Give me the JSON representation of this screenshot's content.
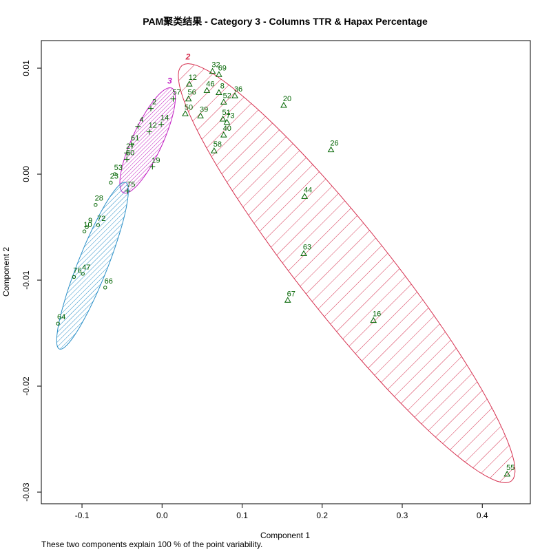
{
  "chart_data": {
    "type": "clusplot",
    "title": "PAM聚类结果 - Category  3  - Columns  TTR  &  Hapax Percentage",
    "x_label": "Component 1",
    "y_label": "Component 2",
    "footnote": "These two components explain 100 % of the point variability.",
    "xlim": [
      -0.1508,
      0.46
    ],
    "ylim": [
      -0.0311,
      0.0126
    ],
    "xticks": [
      -0.1,
      {
        "value": 0,
        "label": "0.0"
      },
      0.1,
      0.2,
      0.3,
      0.4
    ],
    "yticks": [
      -0.03,
      -0.02,
      -0.01,
      {
        "value": 0,
        "label": "0.00"
      },
      0.01
    ],
    "point_color": "#006400",
    "series": [
      {
        "name": "2",
        "color": "#d6304f",
        "marker": "triangle",
        "labels": [
          "12",
          "32",
          "69",
          "46",
          "8",
          "36",
          "56",
          "52",
          "50",
          "39",
          "51",
          "73",
          "40",
          "58",
          "20",
          "26",
          "44",
          "63",
          "67",
          "16",
          "55"
        ],
        "x": [
          0.034,
          0.063,
          0.071,
          0.056,
          0.071,
          0.091,
          0.033,
          0.077,
          0.029,
          0.048,
          0.076,
          0.081,
          0.077,
          0.065,
          0.152,
          0.211,
          0.178,
          0.177,
          0.157,
          0.264,
          0.431
        ],
        "values": [
          0.0085,
          0.0097,
          0.0094,
          0.0079,
          0.0077,
          0.0074,
          0.0071,
          0.0068,
          0.0057,
          0.0055,
          0.0052,
          0.0049,
          0.0037,
          0.0022,
          0.0065,
          0.0023,
          -0.0021,
          -0.0075,
          -0.0119,
          -0.0138,
          -0.0283
        ],
        "ellipse": {
          "center": [
            0.2306,
            -0.00935
          ],
          "axis_a": [
            0.2057,
            -0.0196
          ],
          "axis_b": [
            0.0439,
            0.0026
          ]
        }
      },
      {
        "name": "3",
        "color": "#c21fc2",
        "marker": "plus",
        "labels": [
          "57",
          "2",
          "4",
          "12",
          "14",
          "61",
          "27",
          "60",
          "19",
          "75"
        ],
        "x": [
          0.014,
          -0.014,
          -0.03,
          -0.016,
          -0.001,
          -0.038,
          -0.044,
          -0.044,
          -0.012,
          -0.043
        ],
        "values": [
          0.0071,
          0.0062,
          0.0045,
          0.004,
          0.0047,
          0.0028,
          0.002,
          0.0014,
          0.0007,
          -0.0016
        ],
        "ellipse": {
          "center": [
            -0.0181,
            0.00318
          ],
          "axis_a": [
            0.0301,
            0.00494
          ],
          "axis_b": [
            0.0172,
            -0.00058
          ]
        }
      },
      {
        "color": "#2a8fc7",
        "marker": "circle",
        "labels": [
          "53",
          "23",
          "28",
          "72",
          "9",
          "10",
          "76",
          "47",
          "66",
          "64"
        ],
        "x": [
          -0.059,
          -0.064,
          -0.083,
          -0.08,
          -0.094,
          -0.097,
          -0.11,
          -0.099,
          -0.071,
          -0.13
        ],
        "values": [
          0,
          -0.0008,
          -0.0029,
          -0.0048,
          -0.005,
          -0.0054,
          -0.0097,
          -0.0094,
          -0.0107,
          -0.0141
        ],
        "ellipse": {
          "center": [
            -0.0869,
            -0.00864
          ],
          "axis_a": [
            0.0413,
            0.00786
          ],
          "axis_b": [
            0.0172,
            -0.00052
          ]
        }
      }
    ]
  }
}
